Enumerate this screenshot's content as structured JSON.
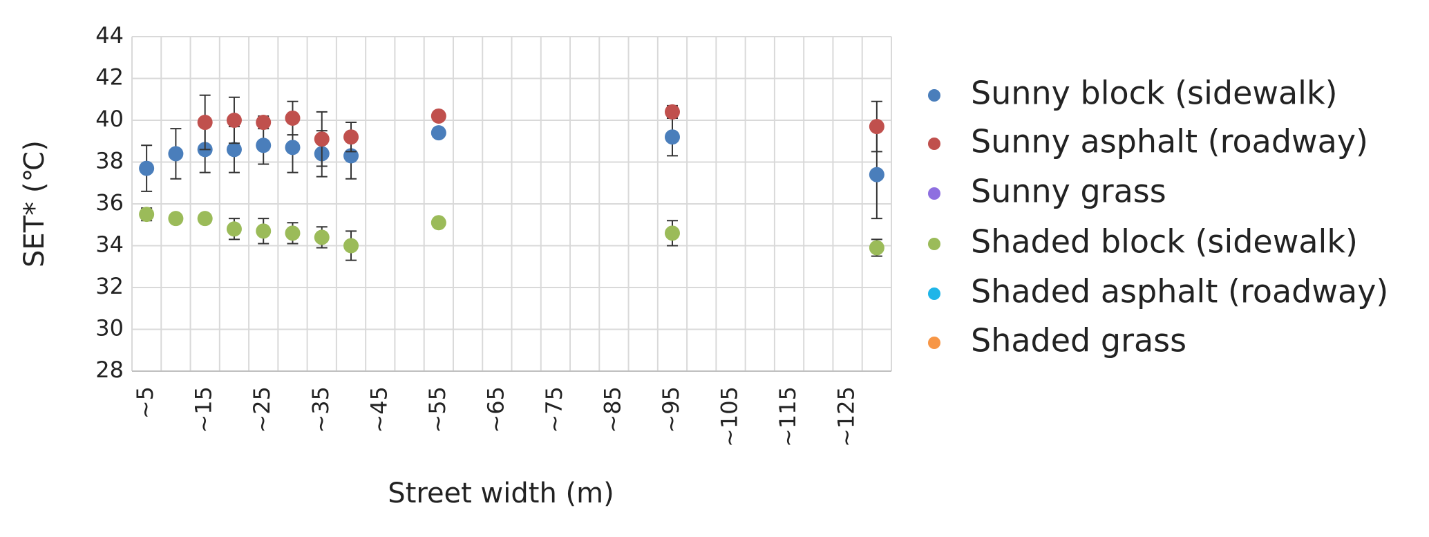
{
  "chart_data": {
    "type": "scatter",
    "x_label": "Street width (m)",
    "y_label": "SET* (℃)",
    "categories": [
      "~5",
      null,
      "~15",
      null,
      "~25",
      null,
      "~35",
      null,
      "~45",
      null,
      "~55",
      null,
      "~65",
      null,
      "~75",
      null,
      "~85",
      null,
      "~95",
      null,
      "~105",
      null,
      "~115",
      null,
      "~125",
      null
    ],
    "ylim": [
      28,
      44
    ],
    "yticks": [
      28,
      30,
      32,
      34,
      36,
      38,
      40,
      42,
      44
    ],
    "grid": true,
    "legend": "right",
    "series": [
      {
        "name": "Sunny block (sidewalk)",
        "color": "#4a7ebb",
        "values": [
          37.7,
          38.4,
          38.6,
          38.6,
          38.8,
          38.7,
          38.4,
          38.3,
          null,
          null,
          39.4,
          null,
          null,
          null,
          null,
          null,
          null,
          null,
          39.2,
          null,
          null,
          null,
          null,
          null,
          null,
          37.4
        ],
        "errors": [
          1.1,
          1.2,
          1.1,
          1.1,
          0.9,
          1.2,
          1.1,
          1.1,
          null,
          null,
          0.2,
          null,
          null,
          null,
          null,
          null,
          null,
          null,
          0.9,
          null,
          null,
          null,
          null,
          null,
          null,
          2.1
        ]
      },
      {
        "name": "Sunny asphalt (roadway)",
        "color": "#c0504d",
        "values": [
          null,
          null,
          39.9,
          40.0,
          39.9,
          40.1,
          39.1,
          39.2,
          null,
          null,
          40.2,
          null,
          null,
          null,
          null,
          null,
          null,
          null,
          40.4,
          null,
          null,
          null,
          null,
          null,
          null,
          39.7
        ],
        "errors": [
          null,
          null,
          1.3,
          1.1,
          0.3,
          0.8,
          1.3,
          0.7,
          null,
          null,
          0.1,
          null,
          null,
          null,
          null,
          null,
          null,
          null,
          0.3,
          null,
          null,
          null,
          null,
          null,
          null,
          1.2
        ]
      },
      {
        "name": "Sunny grass",
        "color": "#8e6fe0",
        "values": [
          null,
          null,
          null,
          null,
          null,
          null,
          null,
          null,
          null,
          null,
          null,
          null,
          null,
          null,
          null,
          null,
          null,
          null,
          null,
          null,
          null,
          null,
          null,
          null,
          null,
          null
        ]
      },
      {
        "name": "Shaded block (sidewalk)",
        "color": "#9bbb59",
        "values": [
          35.5,
          35.3,
          35.3,
          34.8,
          34.7,
          34.6,
          34.4,
          34.0,
          null,
          null,
          35.1,
          null,
          null,
          null,
          null,
          null,
          null,
          null,
          34.6,
          null,
          null,
          null,
          null,
          null,
          null,
          33.9
        ],
        "errors": [
          0.3,
          0.1,
          0.2,
          0.5,
          0.6,
          0.5,
          0.5,
          0.7,
          null,
          null,
          0.1,
          null,
          null,
          null,
          null,
          null,
          null,
          null,
          0.6,
          null,
          null,
          null,
          null,
          null,
          null,
          0.4
        ]
      },
      {
        "name": "Shaded asphalt (roadway)",
        "color": "#1fb5e8",
        "values": [
          null,
          null,
          null,
          null,
          null,
          null,
          null,
          null,
          null,
          null,
          null,
          null,
          null,
          null,
          null,
          null,
          null,
          null,
          null,
          null,
          null,
          null,
          null,
          null,
          null,
          null
        ]
      },
      {
        "name": "Shaded grass",
        "color": "#f79646",
        "values": [
          null,
          null,
          null,
          null,
          null,
          null,
          null,
          null,
          null,
          null,
          null,
          null,
          null,
          null,
          null,
          null,
          null,
          null,
          null,
          null,
          null,
          null,
          null,
          null,
          null,
          null
        ]
      }
    ]
  }
}
